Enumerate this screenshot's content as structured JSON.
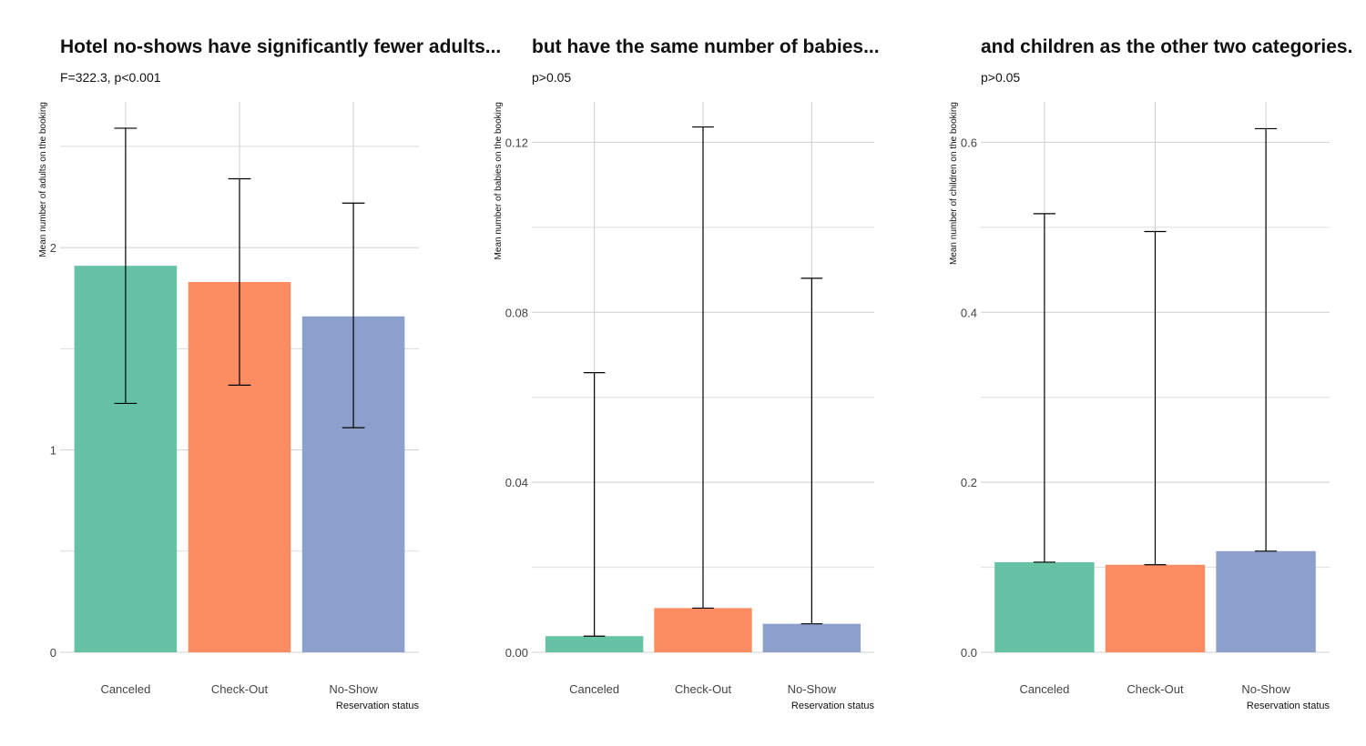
{
  "colors": {
    "Canceled": "#66c2a5",
    "Check-Out": "#fc8d62",
    "No-Show": "#8da0cb"
  },
  "chart_data": [
    {
      "type": "bar",
      "title": "Hotel no-shows have significantly fewer adults...",
      "subtitle": "F=322.3, p<0.001",
      "ylabel": "Mean number of adults on the booking",
      "xlabel": "Reservation status",
      "categories": [
        "Canceled",
        "Check-Out",
        "No-Show"
      ],
      "values": [
        1.91,
        1.83,
        1.66
      ],
      "error_low": [
        1.23,
        1.32,
        1.11
      ],
      "error_high": [
        2.59,
        2.34,
        2.22
      ],
      "ylim": [
        0,
        2.72
      ],
      "yticks": [
        0,
        1,
        2
      ],
      "ytick_labels": [
        "0",
        "1",
        "2"
      ],
      "minor_ticks": [
        0.5,
        1.5,
        2.5
      ],
      "grid": true
    },
    {
      "type": "bar",
      "title": "but have the same number of babies...",
      "subtitle": "p>0.05",
      "ylabel": "Mean number of babies on the booking",
      "xlabel": "Reservation status",
      "categories": [
        "Canceled",
        "Check-Out",
        "No-Show"
      ],
      "values": [
        0.0038,
        0.0104,
        0.0067
      ],
      "error_low": [
        0.0038,
        0.0104,
        0.0067
      ],
      "error_high": [
        0.0658,
        0.1236,
        0.088
      ],
      "ylim": [
        0,
        0.1295
      ],
      "yticks": [
        0,
        0.04,
        0.08,
        0.12
      ],
      "ytick_labels": [
        "0.00",
        "0.04",
        "0.08",
        "0.12"
      ],
      "minor_ticks": [
        0.02,
        0.06,
        0.1
      ],
      "grid": true
    },
    {
      "type": "bar",
      "title": "and children as the other two categories.",
      "subtitle": "p>0.05",
      "ylabel": "Mean number of children on the booking",
      "xlabel": "Reservation status",
      "categories": [
        "Canceled",
        "Check-Out",
        "No-Show"
      ],
      "values": [
        0.106,
        0.103,
        0.119
      ],
      "error_low": [
        0.106,
        0.103,
        0.119
      ],
      "error_high": [
        0.516,
        0.495,
        0.616
      ],
      "ylim": [
        0,
        0.6475
      ],
      "yticks": [
        0,
        0.2,
        0.4,
        0.6
      ],
      "ytick_labels": [
        "0.0",
        "0.2",
        "0.4",
        "0.6"
      ],
      "minor_ticks": [
        0.1,
        0.3,
        0.5
      ],
      "grid": true
    }
  ]
}
